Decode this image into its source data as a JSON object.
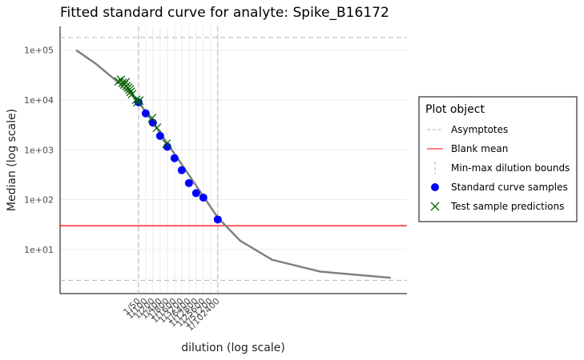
{
  "chart_data": {
    "type": "scatter",
    "title": "Fitted standard curve for analyte: Spike_B16172",
    "xlabel": "dilution (log scale)",
    "ylabel": "Median (log scale)",
    "xscale": "log",
    "yscale": "log",
    "x_reversed": true,
    "grid": true,
    "xlim": [
      38,
      1.2e-13
    ],
    "ylim": [
      1.3,
      300000
    ],
    "yticks": [
      {
        "value": 10,
        "label": "1e+01"
      },
      {
        "value": 100,
        "label": "1e+02"
      },
      {
        "value": 1000,
        "label": "1e+03"
      },
      {
        "value": 10000,
        "label": "1e+04"
      },
      {
        "value": 100000,
        "label": "1e+05"
      }
    ],
    "xticks": [
      {
        "value": 0.02,
        "label": "1/50"
      },
      {
        "value": 0.01,
        "label": "1/100"
      },
      {
        "value": 0.005,
        "label": "1/200"
      },
      {
        "value": 0.0025,
        "label": "1/400"
      },
      {
        "value": 0.00125,
        "label": "1/800"
      },
      {
        "value": 0.000625,
        "label": "1/1600"
      },
      {
        "value": 0.0003125,
        "label": "1/3200"
      },
      {
        "value": 0.00015625,
        "label": "1/6400"
      },
      {
        "value": 7.8125e-05,
        "label": "1/12800"
      },
      {
        "value": 3.90625e-05,
        "label": "1/25600"
      },
      {
        "value": 1.953125e-05,
        "label": "1/51200"
      },
      {
        "value": 9.765625e-06,
        "label": "1/102400"
      }
    ],
    "curve": {
      "color": "#808080",
      "x": [
        8.1,
        1.19,
        0.118,
        0.02,
        0.00054,
        9.8e-06,
        1.13e-06,
        5.2e-08,
        5.1e-10,
        5.8e-13
      ],
      "y": [
        100000,
        53000,
        21000,
        9300,
        750,
        44,
        15,
        6.2,
        3.6,
        2.7
      ]
    },
    "legend_title": "Plot object",
    "legend_position": "right",
    "asymptotes": {
      "name": "Asymptotes",
      "color": "#b3b3b3",
      "values": [
        180000,
        2.4
      ]
    },
    "blank_mean": {
      "name": "Blank mean",
      "color": "#ff0000",
      "values": [
        30
      ]
    },
    "bounds": {
      "name": "Min-max dilution bounds",
      "color": "#b3b3b3",
      "values": [
        0.02,
        9.765625e-06
      ]
    },
    "standards": {
      "name": "Standard curve samples",
      "color": "#0000ff",
      "x": [
        0.02,
        0.01,
        0.005,
        0.0025,
        0.00125,
        0.000625,
        0.0003125,
        0.00015625,
        7.8125e-05,
        3.90625e-05,
        9.765625e-06
      ],
      "y": [
        9000,
        5400,
        3500,
        1900,
        1150,
        680,
        390,
        215,
        135,
        110,
        40
      ]
    },
    "tests": {
      "name": "Test sample predictions",
      "color": "#006400",
      "x": [
        0.137,
        0.109,
        0.093,
        0.08,
        0.069,
        0.064,
        0.054,
        0.047,
        0.043,
        0.037,
        0.025,
        0.022,
        0.0186,
        0.0054,
        0.0034,
        0.00135
      ],
      "y": [
        23700,
        25500,
        22000,
        20400,
        22800,
        19000,
        17600,
        16300,
        14600,
        13100,
        10100,
        9060,
        9750,
        4330,
        2770,
        1325
      ]
    }
  }
}
